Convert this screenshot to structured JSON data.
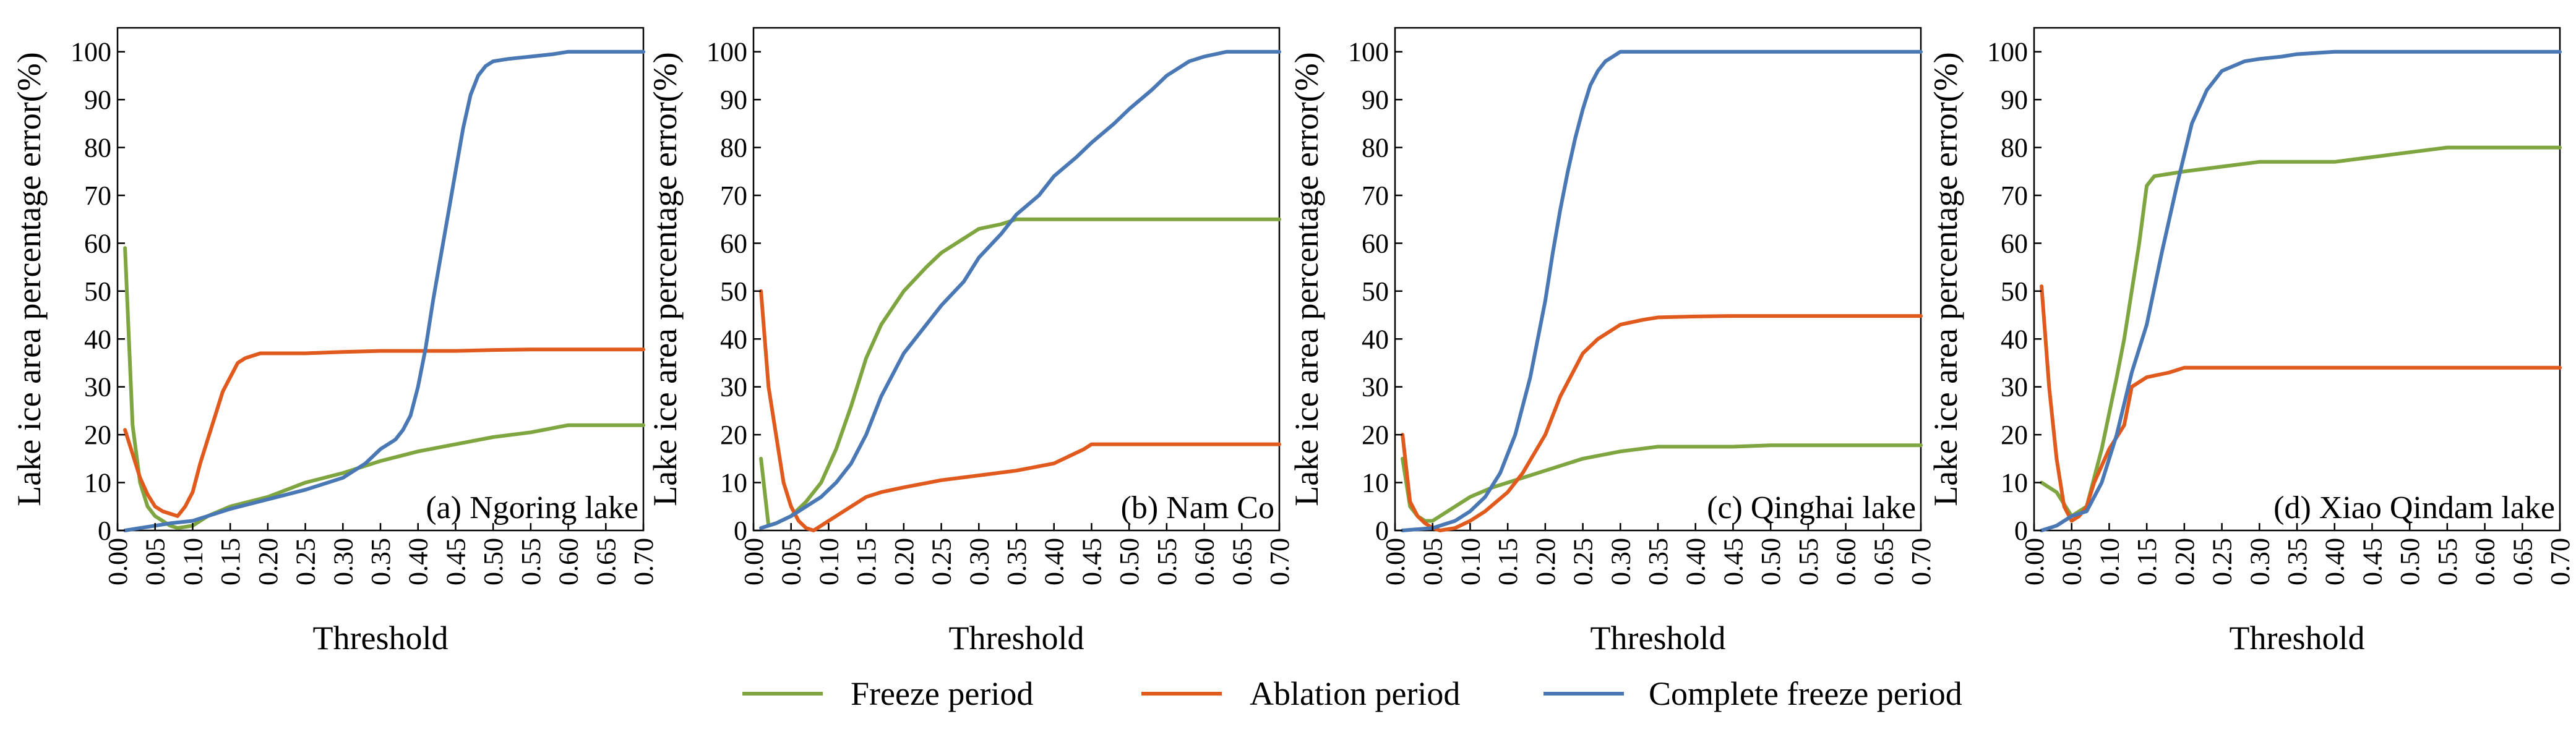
{
  "chart_data": [
    {
      "type": "line",
      "panel_label": "(a) Ngoring lake",
      "xlabel": "Threshold",
      "ylabel": "Lake ice area percentage error(%)",
      "xlim": [
        0,
        0.7
      ],
      "ylim": [
        0,
        105
      ],
      "xticks": [
        "0.00",
        "0.05",
        "0.10",
        "0.15",
        "0.20",
        "0.25",
        "0.30",
        "0.35",
        "0.40",
        "0.45",
        "0.50",
        "0.55",
        "0.60",
        "0.65",
        "0.70"
      ],
      "yticks": [
        "0",
        "10",
        "20",
        "30",
        "40",
        "50",
        "60",
        "70",
        "80",
        "90",
        "100"
      ],
      "series": [
        {
          "name": "Freeze period",
          "x": [
            0.01,
            0.02,
            0.03,
            0.04,
            0.05,
            0.06,
            0.07,
            0.08,
            0.1,
            0.12,
            0.15,
            0.2,
            0.25,
            0.3,
            0.35,
            0.4,
            0.45,
            0.5,
            0.55,
            0.6,
            0.62,
            0.65,
            0.7
          ],
          "y": [
            59,
            22,
            10,
            5,
            3,
            2,
            1,
            0.5,
            1,
            3,
            5,
            7,
            10,
            12,
            14.5,
            16.5,
            18,
            19.5,
            20.5,
            22,
            22,
            22,
            22
          ]
        },
        {
          "name": "Ablation period",
          "x": [
            0.01,
            0.02,
            0.03,
            0.04,
            0.05,
            0.06,
            0.07,
            0.08,
            0.09,
            0.1,
            0.11,
            0.12,
            0.13,
            0.14,
            0.15,
            0.16,
            0.17,
            0.18,
            0.19,
            0.2,
            0.25,
            0.3,
            0.35,
            0.4,
            0.45,
            0.5,
            0.55,
            0.6,
            0.65,
            0.7
          ],
          "y": [
            21,
            16,
            11,
            7.5,
            5,
            4,
            3.5,
            3,
            5,
            8,
            14,
            19,
            24,
            29,
            32,
            35,
            36,
            36.5,
            37,
            37,
            37,
            37.3,
            37.5,
            37.5,
            37.5,
            37.7,
            37.8,
            37.8,
            37.8,
            37.8
          ]
        },
        {
          "name": "Complete freeze period",
          "x": [
            0.01,
            0.03,
            0.05,
            0.07,
            0.1,
            0.13,
            0.15,
            0.2,
            0.25,
            0.3,
            0.33,
            0.35,
            0.37,
            0.38,
            0.39,
            0.4,
            0.41,
            0.42,
            0.43,
            0.44,
            0.45,
            0.46,
            0.47,
            0.48,
            0.49,
            0.5,
            0.52,
            0.55,
            0.58,
            0.6,
            0.62,
            0.65,
            0.7
          ],
          "y": [
            0,
            0.5,
            1,
            1.5,
            2,
            3.5,
            4.5,
            6.5,
            8.5,
            11,
            14,
            17,
            19,
            21,
            24,
            30,
            38,
            48,
            57,
            66,
            75,
            84,
            91,
            95,
            97,
            98,
            98.5,
            99,
            99.5,
            100,
            100,
            100,
            100
          ]
        }
      ]
    },
    {
      "type": "line",
      "panel_label": "(b) Nam Co",
      "xlabel": "Threshold",
      "ylabel": "Lake ice area percentage error(%)",
      "xlim": [
        0,
        0.7
      ],
      "ylim": [
        0,
        105
      ],
      "xticks": [
        "0.00",
        "0.05",
        "0.10",
        "0.15",
        "0.20",
        "0.25",
        "0.30",
        "0.35",
        "0.40",
        "0.45",
        "0.50",
        "0.55",
        "0.60",
        "0.65",
        "0.70"
      ],
      "yticks": [
        "0",
        "10",
        "20",
        "30",
        "40",
        "50",
        "60",
        "70",
        "80",
        "90",
        "100"
      ],
      "series": [
        {
          "name": "Freeze period",
          "x": [
            0.01,
            0.02,
            0.03,
            0.05,
            0.07,
            0.09,
            0.11,
            0.13,
            0.15,
            0.17,
            0.2,
            0.23,
            0.25,
            0.28,
            0.3,
            0.33,
            0.35,
            0.4,
            0.45,
            0.5,
            0.55,
            0.6,
            0.65,
            0.7
          ],
          "y": [
            15,
            1,
            1.5,
            3,
            6,
            10,
            17,
            26,
            36,
            43,
            50,
            55,
            58,
            61,
            63,
            64,
            65,
            65,
            65,
            65,
            65,
            65,
            65,
            65
          ]
        },
        {
          "name": "Ablation period",
          "x": [
            0.01,
            0.02,
            0.03,
            0.04,
            0.05,
            0.06,
            0.07,
            0.08,
            0.09,
            0.1,
            0.12,
            0.15,
            0.17,
            0.2,
            0.25,
            0.3,
            0.35,
            0.4,
            0.42,
            0.44,
            0.45,
            0.5,
            0.55,
            0.6,
            0.65,
            0.7
          ],
          "y": [
            50,
            30,
            20,
            10,
            5,
            2,
            0.5,
            0,
            1,
            2,
            4,
            7,
            8,
            9,
            10.5,
            11.5,
            12.5,
            14,
            15.5,
            17,
            18,
            18,
            18,
            18,
            18,
            18
          ]
        },
        {
          "name": "Complete freeze period",
          "x": [
            0.01,
            0.03,
            0.05,
            0.07,
            0.09,
            0.11,
            0.13,
            0.15,
            0.17,
            0.2,
            0.23,
            0.25,
            0.28,
            0.3,
            0.33,
            0.35,
            0.38,
            0.4,
            0.43,
            0.45,
            0.48,
            0.5,
            0.53,
            0.55,
            0.58,
            0.6,
            0.63,
            0.65,
            0.7
          ],
          "y": [
            0.5,
            1.5,
            3,
            5,
            7,
            10,
            14,
            20,
            28,
            37,
            43,
            47,
            52,
            57,
            62,
            66,
            70,
            74,
            78,
            81,
            85,
            88,
            92,
            95,
            98,
            99,
            100,
            100,
            100
          ]
        }
      ]
    },
    {
      "type": "line",
      "panel_label": "(c) Qinghai lake",
      "xlabel": "Threshold",
      "ylabel": "Lake ice area percentage error(%)",
      "xlim": [
        0,
        0.7
      ],
      "ylim": [
        0,
        105
      ],
      "xticks": [
        "0.00",
        "0.05",
        "0.10",
        "0.15",
        "0.20",
        "0.25",
        "0.30",
        "0.35",
        "0.40",
        "0.45",
        "0.50",
        "0.55",
        "0.60",
        "0.65",
        "0.70"
      ],
      "yticks": [
        "0",
        "10",
        "20",
        "30",
        "40",
        "50",
        "60",
        "70",
        "80",
        "90",
        "100"
      ],
      "series": [
        {
          "name": "Freeze period",
          "x": [
            0.01,
            0.02,
            0.03,
            0.04,
            0.05,
            0.07,
            0.1,
            0.13,
            0.15,
            0.2,
            0.25,
            0.3,
            0.35,
            0.4,
            0.45,
            0.5,
            0.55,
            0.6,
            0.65,
            0.7
          ],
          "y": [
            15,
            5,
            3,
            2,
            2,
            4,
            7,
            9,
            10,
            12.5,
            15,
            16.5,
            17.5,
            17.5,
            17.5,
            17.8,
            17.8,
            17.8,
            17.8,
            17.8
          ]
        },
        {
          "name": "Ablation period",
          "x": [
            0.01,
            0.02,
            0.03,
            0.04,
            0.05,
            0.06,
            0.08,
            0.1,
            0.12,
            0.15,
            0.17,
            0.2,
            0.22,
            0.25,
            0.27,
            0.3,
            0.33,
            0.35,
            0.4,
            0.45,
            0.5,
            0.55,
            0.6,
            0.65,
            0.7
          ],
          "y": [
            20,
            6,
            3,
            1.5,
            0.5,
            0,
            0.5,
            2,
            4,
            8,
            12,
            20,
            28,
            37,
            40,
            43,
            44,
            44.5,
            44.7,
            44.8,
            44.8,
            44.8,
            44.8,
            44.8,
            44.8
          ]
        },
        {
          "name": "Complete freeze period",
          "x": [
            0.01,
            0.05,
            0.08,
            0.1,
            0.12,
            0.14,
            0.16,
            0.18,
            0.2,
            0.21,
            0.22,
            0.23,
            0.24,
            0.25,
            0.26,
            0.27,
            0.28,
            0.29,
            0.3,
            0.32,
            0.35,
            0.4,
            0.45,
            0.5,
            0.55,
            0.6,
            0.65,
            0.7
          ],
          "y": [
            0,
            0.5,
            2,
            4,
            7,
            12,
            20,
            32,
            48,
            58,
            67,
            75,
            82,
            88,
            93,
            96,
            98,
            99,
            100,
            100,
            100,
            100,
            100,
            100,
            100,
            100,
            100,
            100
          ]
        }
      ]
    },
    {
      "type": "line",
      "panel_label": "(d) Xiao Qindam lake",
      "xlabel": "Threshold",
      "ylabel": "Lake ice area percentage error(%)",
      "xlim": [
        0,
        0.7
      ],
      "ylim": [
        0,
        105
      ],
      "xticks": [
        "0.00",
        "0.05",
        "0.10",
        "0.15",
        "0.20",
        "0.25",
        "0.30",
        "0.35",
        "0.40",
        "0.45",
        "0.50",
        "0.55",
        "0.60",
        "0.65",
        "0.70"
      ],
      "yticks": [
        "0",
        "10",
        "20",
        "30",
        "40",
        "50",
        "60",
        "70",
        "80",
        "90",
        "100"
      ],
      "series": [
        {
          "name": "Freeze period",
          "x": [
            0.01,
            0.03,
            0.05,
            0.07,
            0.09,
            0.11,
            0.12,
            0.14,
            0.15,
            0.16,
            0.2,
            0.25,
            0.3,
            0.35,
            0.4,
            0.45,
            0.5,
            0.55,
            0.6,
            0.65,
            0.7
          ],
          "y": [
            10,
            8,
            3,
            5,
            17,
            32,
            40,
            60,
            72,
            74,
            75,
            76,
            77,
            77,
            77,
            78,
            79,
            80,
            80,
            80,
            80
          ]
        },
        {
          "name": "Ablation period",
          "x": [
            0.01,
            0.02,
            0.03,
            0.04,
            0.05,
            0.06,
            0.07,
            0.08,
            0.1,
            0.12,
            0.13,
            0.15,
            0.18,
            0.2,
            0.25,
            0.3,
            0.35,
            0.4,
            0.45,
            0.5,
            0.55,
            0.6,
            0.65,
            0.7
          ],
          "y": [
            51,
            30,
            15,
            5,
            2,
            3,
            5,
            10,
            17,
            22,
            30,
            32,
            33,
            34,
            34,
            34,
            34,
            34,
            34,
            34,
            34,
            34,
            34,
            34
          ]
        },
        {
          "name": "Complete freeze period",
          "x": [
            0.01,
            0.03,
            0.05,
            0.07,
            0.09,
            0.11,
            0.13,
            0.15,
            0.17,
            0.19,
            0.21,
            0.23,
            0.25,
            0.28,
            0.3,
            0.33,
            0.35,
            0.4,
            0.45,
            0.5,
            0.55,
            0.6,
            0.65,
            0.7
          ],
          "y": [
            0,
            1,
            3,
            4,
            10,
            20,
            33,
            43,
            58,
            72,
            85,
            92,
            96,
            98,
            98.5,
            99,
            99.5,
            100,
            100,
            100,
            100,
            100,
            100,
            100
          ]
        }
      ]
    }
  ],
  "legend": {
    "placement": "bottom-center",
    "items": [
      {
        "label": "Freeze period",
        "color": "#7fa540"
      },
      {
        "label": "Ablation period",
        "color": "#e05a1e"
      },
      {
        "label": "Complete freeze period",
        "color": "#4a78b5"
      }
    ]
  }
}
